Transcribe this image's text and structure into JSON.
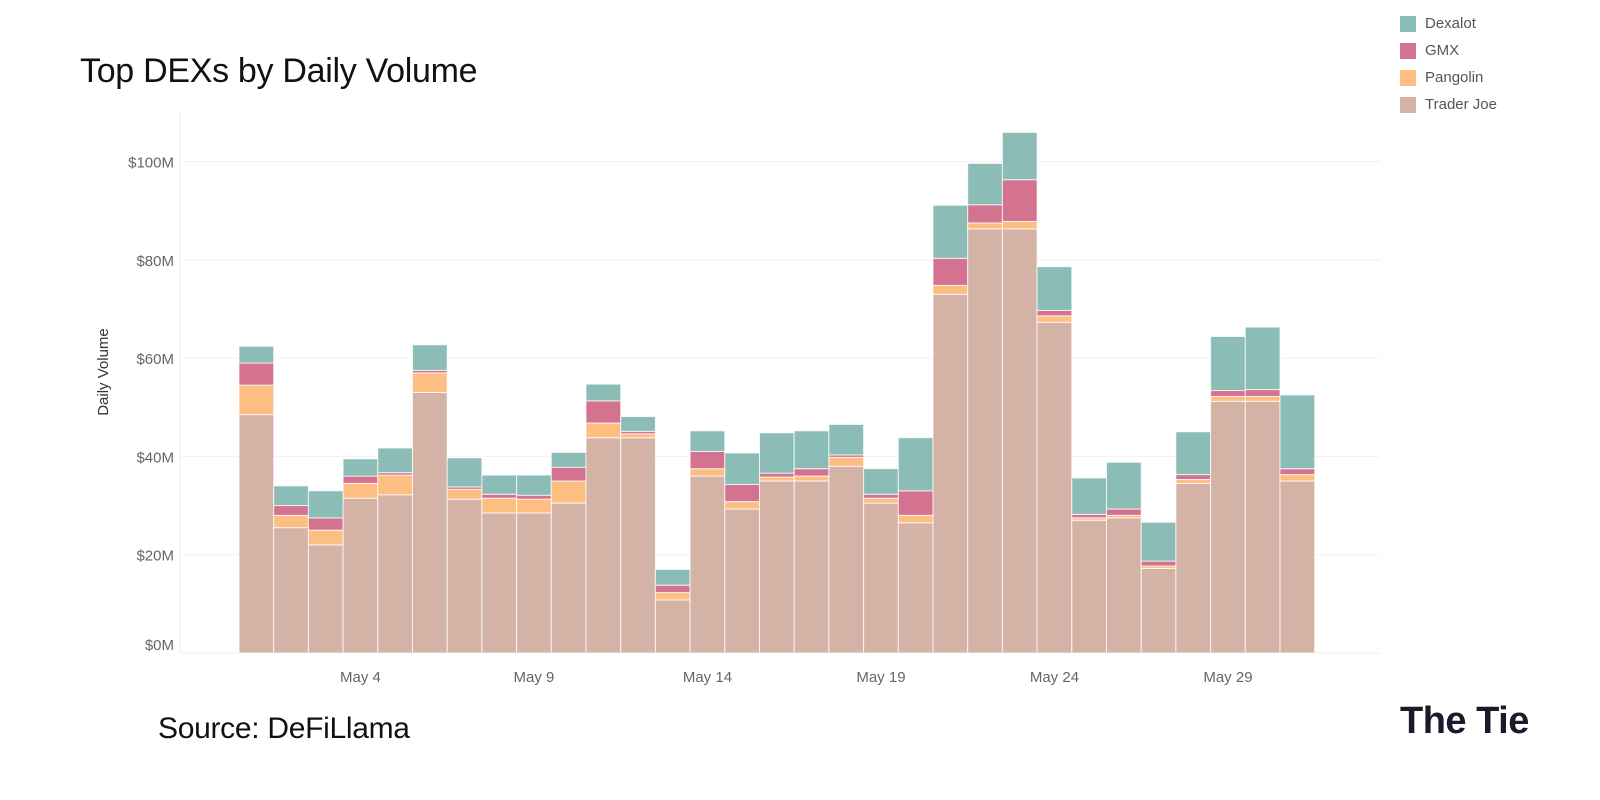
{
  "title": "Top DEXs by Daily Volume",
  "source": "Source: DeFiLlama",
  "logo": "The Tie",
  "chart_data": {
    "type": "bar",
    "stacked": true,
    "title": "Top DEXs by Daily Volume",
    "xlabel": "",
    "ylabel": "Daily Volume",
    "ylim": [
      0,
      110
    ],
    "y_ticks": [
      0,
      20,
      40,
      60,
      80,
      100
    ],
    "y_tick_labels": [
      "$0M",
      "$20M",
      "$40M",
      "$60M",
      "$80M",
      "$100M"
    ],
    "y_unit": "$M",
    "categories": [
      "May 1",
      "May 2",
      "May 3",
      "May 4",
      "May 5",
      "May 6",
      "May 7",
      "May 8",
      "May 9",
      "May 10",
      "May 11",
      "May 12",
      "May 13",
      "May 14",
      "May 15",
      "May 16",
      "May 17",
      "May 18",
      "May 19",
      "May 20",
      "May 21",
      "May 22",
      "May 23",
      "May 24",
      "May 25",
      "May 26",
      "May 27",
      "May 28",
      "May 29",
      "May 30",
      "May 31"
    ],
    "x_tick_labels": [
      "May 4",
      "May 9",
      "May 14",
      "May 19",
      "May 24",
      "May 29"
    ],
    "x_tick_indices": [
      3,
      8,
      13,
      18,
      23,
      28
    ],
    "legend": [
      "Dexalot",
      "GMX",
      "Pangolin",
      "Trader Joe"
    ],
    "legend_position": "top-right",
    "series": [
      {
        "name": "Trader Joe",
        "color": "#d4b3a6",
        "values": [
          48.5,
          25.5,
          22,
          31.5,
          32.2,
          53,
          31.3,
          28.5,
          28.5,
          30.5,
          43.8,
          43.8,
          10.8,
          36,
          29.3,
          35,
          35,
          38,
          30.5,
          26.5,
          73,
          86.3,
          86.3,
          67.3,
          27,
          27.5,
          17.2,
          34.5,
          51.2,
          51.2,
          35
        ]
      },
      {
        "name": "Pangolin",
        "color": "#fdbe82",
        "values": [
          6,
          2.5,
          3,
          3,
          4,
          4,
          2,
          3,
          2.8,
          4.5,
          3,
          0.8,
          1.5,
          1.5,
          1.5,
          0.8,
          1,
          1.8,
          1,
          1.5,
          1.8,
          1.2,
          1.5,
          1.3,
          0.5,
          0.5,
          0.5,
          0.8,
          1,
          1,
          1.3
        ]
      },
      {
        "name": "GMX",
        "color": "#d4738f",
        "values": [
          4.5,
          2,
          2.5,
          1.5,
          0.5,
          0.5,
          0.5,
          0.8,
          0.8,
          2.8,
          4.5,
          0.5,
          1.5,
          3.5,
          3.5,
          0.8,
          1.5,
          0.5,
          0.8,
          5,
          5.5,
          3.7,
          8.5,
          1.1,
          0.7,
          1.3,
          1,
          1,
          1.2,
          1.4,
          1.2
        ]
      },
      {
        "name": "Dexalot",
        "color": "#8bbcb6",
        "values": [
          3.4,
          4,
          5.5,
          3.5,
          5,
          5.2,
          5.9,
          3.9,
          4.1,
          3,
          3.4,
          3,
          3.2,
          4.2,
          6.4,
          8.2,
          7.7,
          6.2,
          5.2,
          10.8,
          10.8,
          8.4,
          9.6,
          8.9,
          7.4,
          9.5,
          7.9,
          8.7,
          11,
          12.7,
          15
        ]
      }
    ]
  }
}
